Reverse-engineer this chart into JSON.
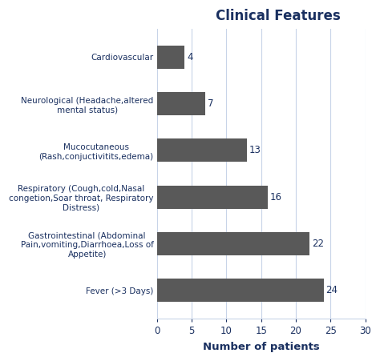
{
  "title": "Clinical Features",
  "title_color": "#1a3060",
  "title_fontsize": 12,
  "title_fontweight": "bold",
  "xlabel": "Number of patients",
  "xlabel_color": "#1a3060",
  "xlabel_fontsize": 9.5,
  "xlabel_fontweight": "bold",
  "categories": [
    "Fever (>3 Days)",
    "Gastrointestinal (Abdominal\nPain,vomiting,Diarrhoea,Loss of\nAppetite)",
    "Respiratory (Cough,cold,Nasal\ncongetion,Soar throat, Respiratory\nDistress)",
    "Mucocutaneous\n(Rash,conjuctivitits,edema)",
    "Neurological (Headache,altered\nmental status)",
    "Cardiovascular"
  ],
  "values": [
    24,
    22,
    16,
    13,
    7,
    4
  ],
  "bar_color": "#595959",
  "bar_height": 0.5,
  "xlim": [
    0,
    30
  ],
  "xticks": [
    0,
    5,
    10,
    15,
    20,
    25,
    30
  ],
  "tick_label_color": "#1a3060",
  "tick_label_fontsize": 8.5,
  "category_label_color": "#1a3060",
  "category_label_fontsize": 7.5,
  "value_label_color": "#1a3060",
  "value_label_fontsize": 8.5,
  "grid_color": "#c8d4e8",
  "background_color": "#ffffff",
  "plot_bg_color": "#ffffff"
}
